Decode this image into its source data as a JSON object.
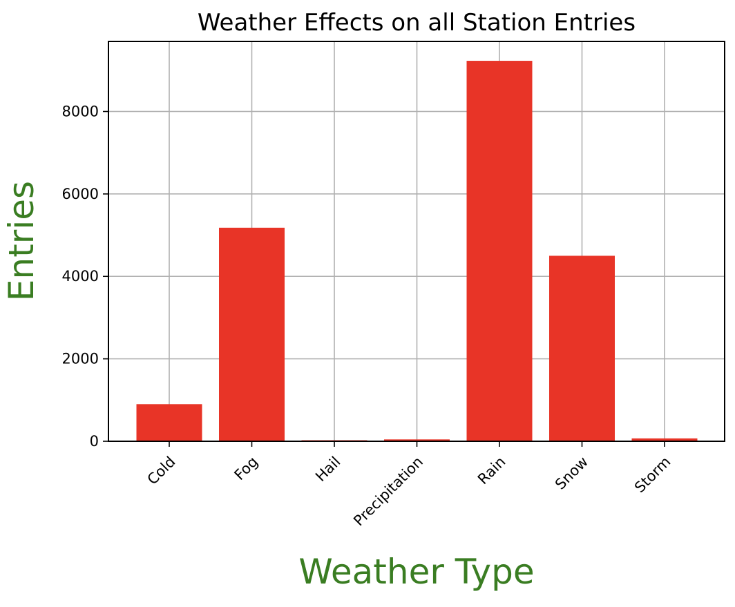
{
  "chart_data": {
    "type": "bar",
    "title": "Weather Effects on all Station Entries",
    "xlabel": "Weather Type",
    "ylabel": "Entries",
    "categories": [
      "Cold",
      "Fog",
      "Hail",
      "Precipitation",
      "Rain",
      "Snow",
      "Storm"
    ],
    "values": [
      900,
      5180,
      25,
      45,
      9230,
      4500,
      70
    ],
    "ylim": [
      0,
      9700
    ],
    "yticks": [
      0,
      2000,
      4000,
      6000,
      8000
    ],
    "ytick_labels": [
      "0",
      "2000",
      "4000",
      "6000",
      "8000"
    ],
    "grid": true,
    "colors": {
      "bar": "#e83427",
      "axis_label": "#3a7d22",
      "grid": "#b0b0b0",
      "text": "#000000"
    }
  }
}
